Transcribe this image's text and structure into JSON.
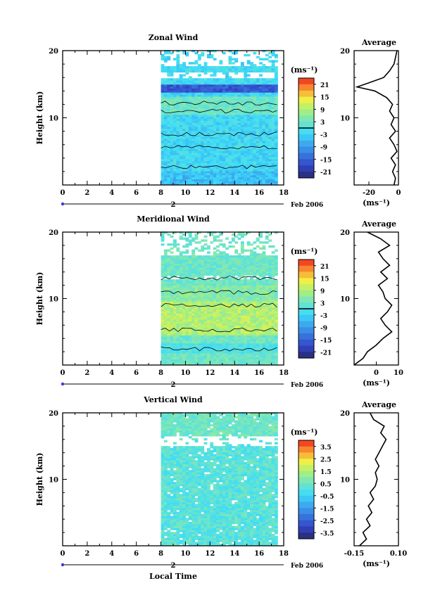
{
  "chart_data": [
    {
      "type": "heatmap",
      "title": "Zonal Wind",
      "ylabel": "Height (km)",
      "xlim": [
        0,
        18
      ],
      "ylim": [
        0,
        20
      ],
      "x_ticks": [
        0,
        2,
        4,
        6,
        8,
        10,
        12,
        14,
        16,
        18
      ],
      "y_ticks": [
        10,
        20
      ],
      "date_marker": "2",
      "date_label": "Feb 2006",
      "data_time_range": [
        8,
        17.5
      ],
      "colorbar": {
        "unit_label": "(ms⁻¹)",
        "ticks": [
          "21",
          "15",
          "9",
          "3",
          "-3",
          "-9",
          "-15",
          "-21"
        ],
        "vmin": -24,
        "vmax": 24
      },
      "average_profile": {
        "title": "Average",
        "xlabel": "(ms⁻¹)",
        "xlim": [
          -30,
          0
        ],
        "x_ticks": [
          "-20",
          "0"
        ],
        "y_ticks": [
          "10",
          "20"
        ],
        "points": [
          [
            -3,
            0
          ],
          [
            -2,
            1
          ],
          [
            -4,
            2
          ],
          [
            -2,
            3
          ],
          [
            -5,
            4
          ],
          [
            -1,
            5
          ],
          [
            -3,
            6
          ],
          [
            -6,
            7
          ],
          [
            -2,
            8
          ],
          [
            -5,
            9
          ],
          [
            -3,
            10
          ],
          [
            -6,
            11
          ],
          [
            -4,
            12
          ],
          [
            -8,
            13
          ],
          [
            -16,
            14
          ],
          [
            -28,
            14.6
          ],
          [
            -20,
            15.2
          ],
          [
            -10,
            16
          ],
          [
            -6,
            17
          ],
          [
            -3,
            18
          ],
          [
            -2,
            19
          ],
          [
            -1,
            20
          ]
        ]
      }
    },
    {
      "type": "heatmap",
      "title": "Meridional Wind",
      "ylabel": "Height (km)",
      "xlim": [
        0,
        18
      ],
      "ylim": [
        0,
        20
      ],
      "x_ticks": [
        0,
        2,
        4,
        6,
        8,
        10,
        12,
        14,
        16,
        18
      ],
      "y_ticks": [
        10,
        20
      ],
      "date_marker": "2",
      "date_label": "Feb 2006",
      "data_time_range": [
        8,
        17.5
      ],
      "colorbar": {
        "unit_label": "(ms⁻¹)",
        "ticks": [
          "21",
          "15",
          "9",
          "3",
          "-3",
          "-9",
          "-15",
          "-21"
        ],
        "vmin": -24,
        "vmax": 24
      },
      "average_profile": {
        "title": "Average",
        "xlabel": "(ms⁻¹)",
        "xlim": [
          -10,
          10
        ],
        "x_ticks": [
          "0",
          "10"
        ],
        "y_ticks": [
          "10",
          "20"
        ],
        "points": [
          [
            -10,
            0
          ],
          [
            -6,
            1
          ],
          [
            -4,
            2
          ],
          [
            0,
            3
          ],
          [
            3,
            4
          ],
          [
            7,
            5
          ],
          [
            4,
            6
          ],
          [
            2,
            7
          ],
          [
            5,
            8
          ],
          [
            7,
            9
          ],
          [
            4,
            10
          ],
          [
            3,
            11
          ],
          [
            1,
            12
          ],
          [
            5,
            13
          ],
          [
            2,
            14
          ],
          [
            6,
            15
          ],
          [
            3,
            16
          ],
          [
            1,
            17
          ],
          [
            6,
            18
          ],
          [
            2,
            19
          ],
          [
            -4,
            20
          ]
        ]
      }
    },
    {
      "type": "heatmap",
      "title": "Vertical Wind",
      "xlabel": "Local Time",
      "ylabel": "Height (km)",
      "xlim": [
        0,
        18
      ],
      "ylim": [
        0,
        20
      ],
      "x_ticks": [
        0,
        2,
        4,
        6,
        8,
        10,
        12,
        14,
        16,
        18
      ],
      "y_ticks": [
        10,
        20
      ],
      "date_marker": "2",
      "date_label": "Feb 2006",
      "data_time_range": [
        8,
        17.5
      ],
      "colorbar": {
        "unit_label": "(ms⁻¹)",
        "ticks": [
          "3.5",
          "2.5",
          "1.5",
          "0.5",
          "-0.5",
          "-1.5",
          "-2.5",
          "-3.5"
        ],
        "vmin": -4,
        "vmax": 4
      },
      "average_profile": {
        "title": "Average",
        "xlabel": "(ms⁻¹)",
        "xlim": [
          -0.15,
          0.1
        ],
        "x_ticks": [
          "-0.15",
          "0.10"
        ],
        "y_ticks": [
          "10",
          "20"
        ],
        "points": [
          [
            -0.12,
            0
          ],
          [
            -0.08,
            1
          ],
          [
            -0.1,
            2
          ],
          [
            -0.06,
            3
          ],
          [
            -0.08,
            4
          ],
          [
            -0.05,
            5
          ],
          [
            -0.07,
            6
          ],
          [
            -0.04,
            7
          ],
          [
            -0.06,
            8
          ],
          [
            -0.03,
            9
          ],
          [
            -0.02,
            10
          ],
          [
            -0.03,
            11
          ],
          [
            -0.01,
            12
          ],
          [
            -0.03,
            13
          ],
          [
            -0.01,
            14
          ],
          [
            0.01,
            15
          ],
          [
            0.03,
            16
          ],
          [
            0.0,
            17
          ],
          [
            0.02,
            18
          ],
          [
            -0.04,
            19
          ],
          [
            -0.06,
            20
          ]
        ]
      }
    }
  ]
}
